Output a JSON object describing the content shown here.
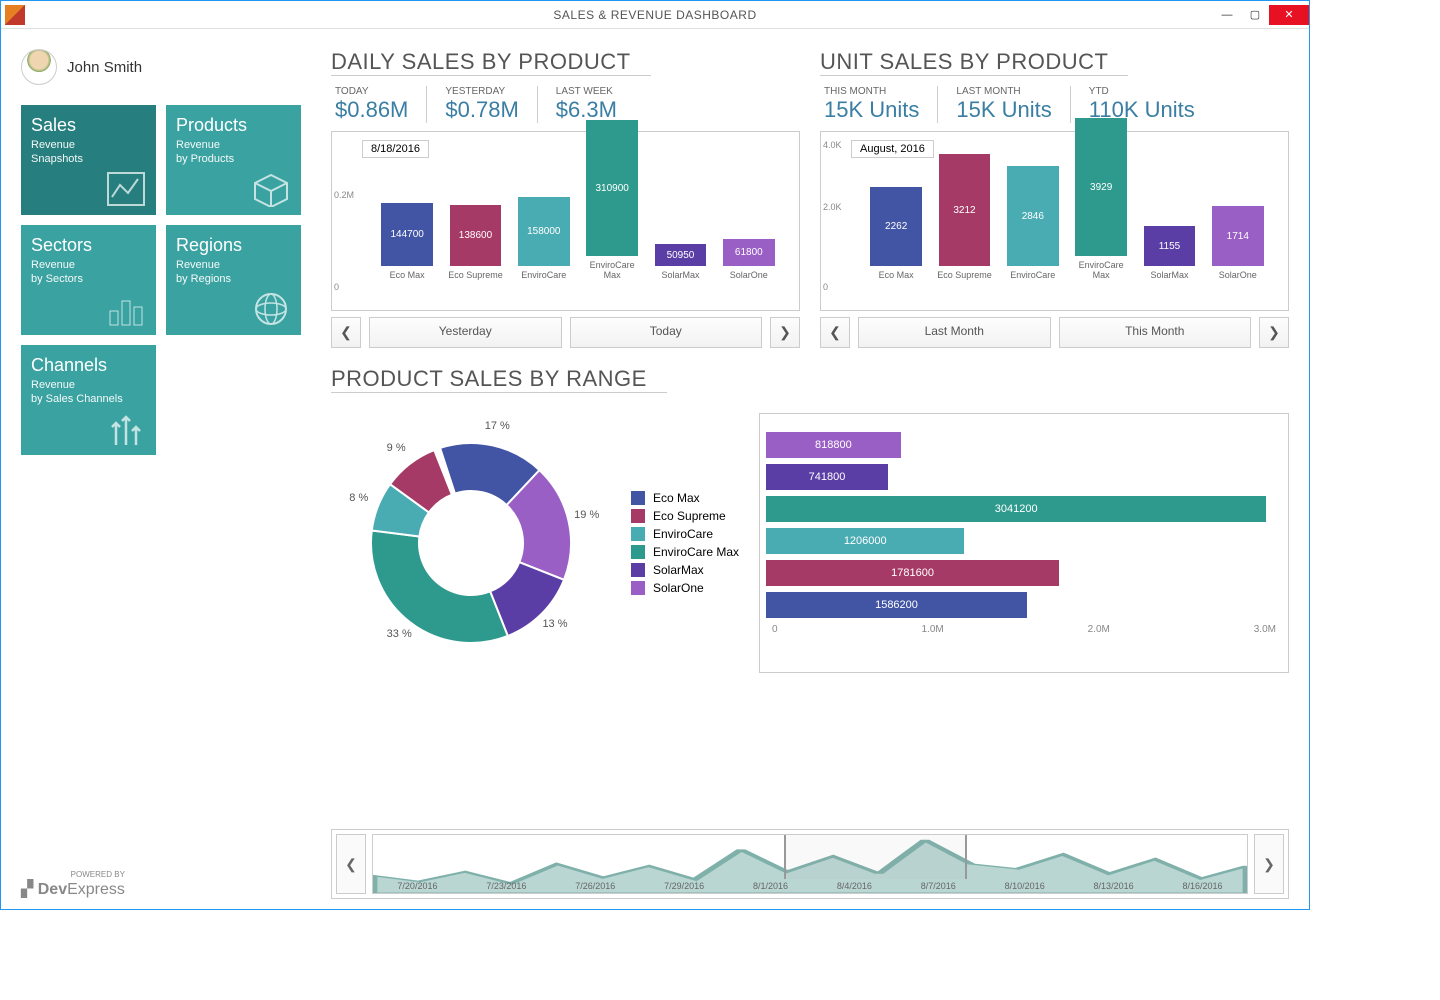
{
  "window": {
    "title": "SALES & REVENUE DASHBOARD"
  },
  "user": {
    "name": "John Smith"
  },
  "tiles": [
    {
      "title": "Sales",
      "sub1": "Revenue",
      "sub2": "Snapshots",
      "active": true,
      "icon": "chart-line"
    },
    {
      "title": "Products",
      "sub1": "Revenue",
      "sub2": "by Products",
      "icon": "box"
    },
    {
      "title": "Sectors",
      "sub1": "Revenue",
      "sub2": "by Sectors",
      "icon": "bars"
    },
    {
      "title": "Regions",
      "sub1": "Revenue",
      "sub2": "by Regions",
      "icon": "globe"
    },
    {
      "title": "Channels",
      "sub1": "Revenue",
      "sub2": "by Sales Channels",
      "icon": "arrows"
    }
  ],
  "colors": {
    "tile": "#3aa2a1",
    "tile_active": "#267f7e",
    "kpi_value": "#3a7ea3",
    "series": [
      "#4255a4",
      "#a63a67",
      "#4aacb3",
      "#2e9a8e",
      "#5b3ea5",
      "#9a5fc5"
    ]
  },
  "daily": {
    "title": "DAILY SALES BY PRODUCT",
    "kpis": [
      {
        "label": "TODAY",
        "value": "$0.86M"
      },
      {
        "label": "YESTERDAY",
        "value": "$0.78M"
      },
      {
        "label": "LAST WEEK",
        "value": "$6.3M"
      }
    ],
    "date_tag": "8/18/2016",
    "yaxis": {
      "max": 320000,
      "tick": "0.2M",
      "zero": "0"
    },
    "categories": [
      "Eco Max",
      "Eco Supreme",
      "EnviroCare",
      "EnviroCare Max",
      "SolarMax",
      "SolarOne"
    ],
    "values": [
      144700,
      138600,
      158000,
      310900,
      50950,
      61800
    ],
    "nav": {
      "prev": "Yesterday",
      "next": "Today"
    }
  },
  "unit": {
    "title": "UNIT SALES BY PRODUCT",
    "kpis": [
      {
        "label": "THIS MONTH",
        "value": "15K Units"
      },
      {
        "label": "LAST MONTH",
        "value": "15K Units"
      },
      {
        "label": "YTD",
        "value": "110K Units"
      }
    ],
    "date_tag": "August, 2016",
    "yaxis": {
      "max": 4000,
      "tick": "4.0K",
      "mid": "2.0K",
      "zero": "0"
    },
    "categories": [
      "Eco Max",
      "Eco Supreme",
      "EnviroCare",
      "EnviroCare Max",
      "SolarMax",
      "SolarOne"
    ],
    "values": [
      2262,
      3212,
      2846,
      3929,
      1155,
      1714
    ],
    "nav": {
      "prev": "Last Month",
      "next": "This Month"
    }
  },
  "range": {
    "title": "PRODUCT SALES BY RANGE",
    "donut": {
      "labels": [
        "17 %",
        "19 %",
        "13 %",
        "33 %",
        "8 %",
        "9 %"
      ],
      "percents": [
        17,
        19,
        13,
        33,
        8,
        9
      ],
      "order_colors": [
        0,
        1,
        2,
        3,
        4,
        5
      ]
    },
    "legend": [
      "Eco Max",
      "Eco Supreme",
      "EnviroCare",
      "EnviroCare Max",
      "SolarMax",
      "SolarOne"
    ],
    "hbar": {
      "values": [
        818800,
        741800,
        3041200,
        1206000,
        1781600,
        1586200
      ],
      "color_idx": [
        5,
        4,
        3,
        2,
        1,
        0
      ],
      "max": 3100000,
      "ticks": [
        "0",
        "1.0M",
        "2.0M",
        "3.0M"
      ]
    }
  },
  "timeline": {
    "dates": [
      "7/20/2016",
      "7/23/2016",
      "7/26/2016",
      "7/29/2016",
      "8/1/2016",
      "8/4/2016",
      "8/7/2016",
      "8/10/2016",
      "8/13/2016",
      "8/16/2016"
    ],
    "spark": [
      18,
      12,
      22,
      10,
      30,
      16,
      28,
      14,
      45,
      22,
      38,
      20,
      55,
      30,
      25,
      40,
      20,
      35,
      15,
      28
    ],
    "spark_color": "#b9d6d3",
    "selection": {
      "start_pct": 47,
      "end_pct": 68
    }
  },
  "footer": {
    "brand1": "Dev",
    "brand2": "Express",
    "tag": "POWERED BY"
  }
}
